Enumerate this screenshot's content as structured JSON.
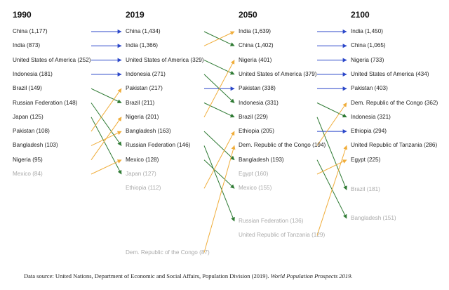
{
  "chart_data": {
    "type": "table",
    "columns": [
      "1990",
      "2019",
      "2050",
      "2100"
    ],
    "series": [
      {
        "name": "1990",
        "entries": [
          {
            "label": "China (1,177)"
          },
          {
            "label": "India (873)"
          },
          {
            "label": "United States of America (252)"
          },
          {
            "label": "Indonesia (181)"
          },
          {
            "label": "Brazil (149)"
          },
          {
            "label": "Russian Federation (148)"
          },
          {
            "label": "Japan (125)"
          },
          {
            "label": "Pakistan (108)"
          },
          {
            "label": "Bangladesh (103)"
          },
          {
            "label": "Nigeria (95)"
          },
          {
            "label": "Mexico (84)",
            "faded": true
          }
        ]
      },
      {
        "name": "2019",
        "entries": [
          {
            "label": "China (1,434)"
          },
          {
            "label": "India (1,366)"
          },
          {
            "label": "United States of America (329)"
          },
          {
            "label": "Indonesia (271)"
          },
          {
            "label": "Pakistan (217)"
          },
          {
            "label": "Brazil (211)"
          },
          {
            "label": "Nigeria (201)"
          },
          {
            "label": "Bangladesh (163)"
          },
          {
            "label": "Russian Federation (146)"
          },
          {
            "label": "Mexico (128)"
          },
          {
            "label": "Japan (127)",
            "faded": true
          },
          {
            "label": "Ethiopia (112)",
            "faded": true
          },
          {
            "label": "Dem. Republic of the Congo (87)",
            "faded": true,
            "row": 15.5
          }
        ]
      },
      {
        "name": "2050",
        "entries": [
          {
            "label": "India (1,639)"
          },
          {
            "label": "China (1,402)"
          },
          {
            "label": "Nigeria (401)"
          },
          {
            "label": "United States of America (379)"
          },
          {
            "label": "Pakistan (338)"
          },
          {
            "label": "Indonesia (331)"
          },
          {
            "label": "Brazil (229)"
          },
          {
            "label": "Ethiopia (205)"
          },
          {
            "label": "Dem. Republic of the Congo (194)"
          },
          {
            "label": "Bangladesh (193)"
          },
          {
            "label": "Egypt (160)",
            "faded": true
          },
          {
            "label": "Mexico (155)",
            "faded": true
          },
          {
            "label": "Russian Federation (136)",
            "faded": true,
            "row": 13.3
          },
          {
            "label": "United Republic of Tanzania (129)",
            "faded": true,
            "row": 14.3
          }
        ]
      },
      {
        "name": "2100",
        "entries": [
          {
            "label": "India (1,450)"
          },
          {
            "label": "China (1,065)"
          },
          {
            "label": "Nigeria (733)"
          },
          {
            "label": "United States of America (434)"
          },
          {
            "label": "Pakistan (403)"
          },
          {
            "label": "Dem. Republic of the Congo (362)"
          },
          {
            "label": "Indonesia (321)"
          },
          {
            "label": "Ethiopia (294)"
          },
          {
            "label": "United Republic of Tanzania (286)"
          },
          {
            "label": "Egypt (225)"
          },
          {
            "label": "Brazil (181)",
            "faded": true,
            "row": 11.1
          },
          {
            "label": "Bangladesh (151)",
            "faded": true,
            "row": 13.1
          }
        ]
      }
    ],
    "transitions": [
      {
        "from": [
          0,
          0
        ],
        "to": [
          1,
          0
        ],
        "kind": "same"
      },
      {
        "from": [
          0,
          1
        ],
        "to": [
          1,
          1
        ],
        "kind": "same"
      },
      {
        "from": [
          0,
          2
        ],
        "to": [
          1,
          2
        ],
        "kind": "same"
      },
      {
        "from": [
          0,
          3
        ],
        "to": [
          1,
          3
        ],
        "kind": "same"
      },
      {
        "from": [
          0,
          4
        ],
        "to": [
          1,
          5
        ],
        "kind": "down"
      },
      {
        "from": [
          0,
          5
        ],
        "to": [
          1,
          8
        ],
        "kind": "down"
      },
      {
        "from": [
          0,
          6
        ],
        "to": [
          1,
          10
        ],
        "kind": "down"
      },
      {
        "from": [
          0,
          7
        ],
        "to": [
          1,
          4
        ],
        "kind": "up"
      },
      {
        "from": [
          0,
          8
        ],
        "to": [
          1,
          7
        ],
        "kind": "up"
      },
      {
        "from": [
          0,
          9
        ],
        "to": [
          1,
          6
        ],
        "kind": "up"
      },
      {
        "from": [
          0,
          10
        ],
        "to": [
          1,
          9
        ],
        "kind": "up"
      },
      {
        "from": [
          1,
          0
        ],
        "to": [
          2,
          1
        ],
        "kind": "down"
      },
      {
        "from": [
          1,
          1
        ],
        "to": [
          2,
          0
        ],
        "kind": "up"
      },
      {
        "from": [
          1,
          2
        ],
        "to": [
          2,
          3
        ],
        "kind": "down"
      },
      {
        "from": [
          1,
          3
        ],
        "to": [
          2,
          5
        ],
        "kind": "down"
      },
      {
        "from": [
          1,
          4
        ],
        "to": [
          2,
          4
        ],
        "kind": "same"
      },
      {
        "from": [
          1,
          5
        ],
        "to": [
          2,
          6
        ],
        "kind": "down"
      },
      {
        "from": [
          1,
          6
        ],
        "to": [
          2,
          2
        ],
        "kind": "up"
      },
      {
        "from": [
          1,
          7
        ],
        "to": [
          2,
          9
        ],
        "kind": "down"
      },
      {
        "from": [
          1,
          8
        ],
        "to": [
          2,
          12
        ],
        "kind": "down"
      },
      {
        "from": [
          1,
          9
        ],
        "to": [
          2,
          11
        ],
        "kind": "down"
      },
      {
        "from": [
          1,
          11
        ],
        "to": [
          2,
          7
        ],
        "kind": "up"
      },
      {
        "from": [
          1,
          12
        ],
        "to": [
          2,
          8
        ],
        "kind": "up"
      },
      {
        "from": [
          2,
          0
        ],
        "to": [
          3,
          0
        ],
        "kind": "same"
      },
      {
        "from": [
          2,
          1
        ],
        "to": [
          3,
          1
        ],
        "kind": "same"
      },
      {
        "from": [
          2,
          2
        ],
        "to": [
          3,
          2
        ],
        "kind": "same"
      },
      {
        "from": [
          2,
          3
        ],
        "to": [
          3,
          3
        ],
        "kind": "same"
      },
      {
        "from": [
          2,
          4
        ],
        "to": [
          3,
          4
        ],
        "kind": "same"
      },
      {
        "from": [
          2,
          5
        ],
        "to": [
          3,
          6
        ],
        "kind": "down"
      },
      {
        "from": [
          2,
          6
        ],
        "to": [
          3,
          10
        ],
        "kind": "down"
      },
      {
        "from": [
          2,
          7
        ],
        "to": [
          3,
          7
        ],
        "kind": "same"
      },
      {
        "from": [
          2,
          8
        ],
        "to": [
          3,
          5
        ],
        "kind": "up"
      },
      {
        "from": [
          2,
          9
        ],
        "to": [
          3,
          11
        ],
        "kind": "down"
      },
      {
        "from": [
          2,
          10
        ],
        "to": [
          3,
          9
        ],
        "kind": "up"
      },
      {
        "from": [
          2,
          13
        ],
        "to": [
          3,
          8
        ],
        "kind": "up"
      }
    ],
    "colors": {
      "same": "#2b47c9",
      "up": "#f0ad3a",
      "down": "#2e7a33"
    }
  },
  "source_note": {
    "prefix": "Data source: United Nations, Department of Economic and Social Affairs, Population Division (2019). ",
    "italic": "World Population Prospects 2019",
    "suffix": "."
  }
}
